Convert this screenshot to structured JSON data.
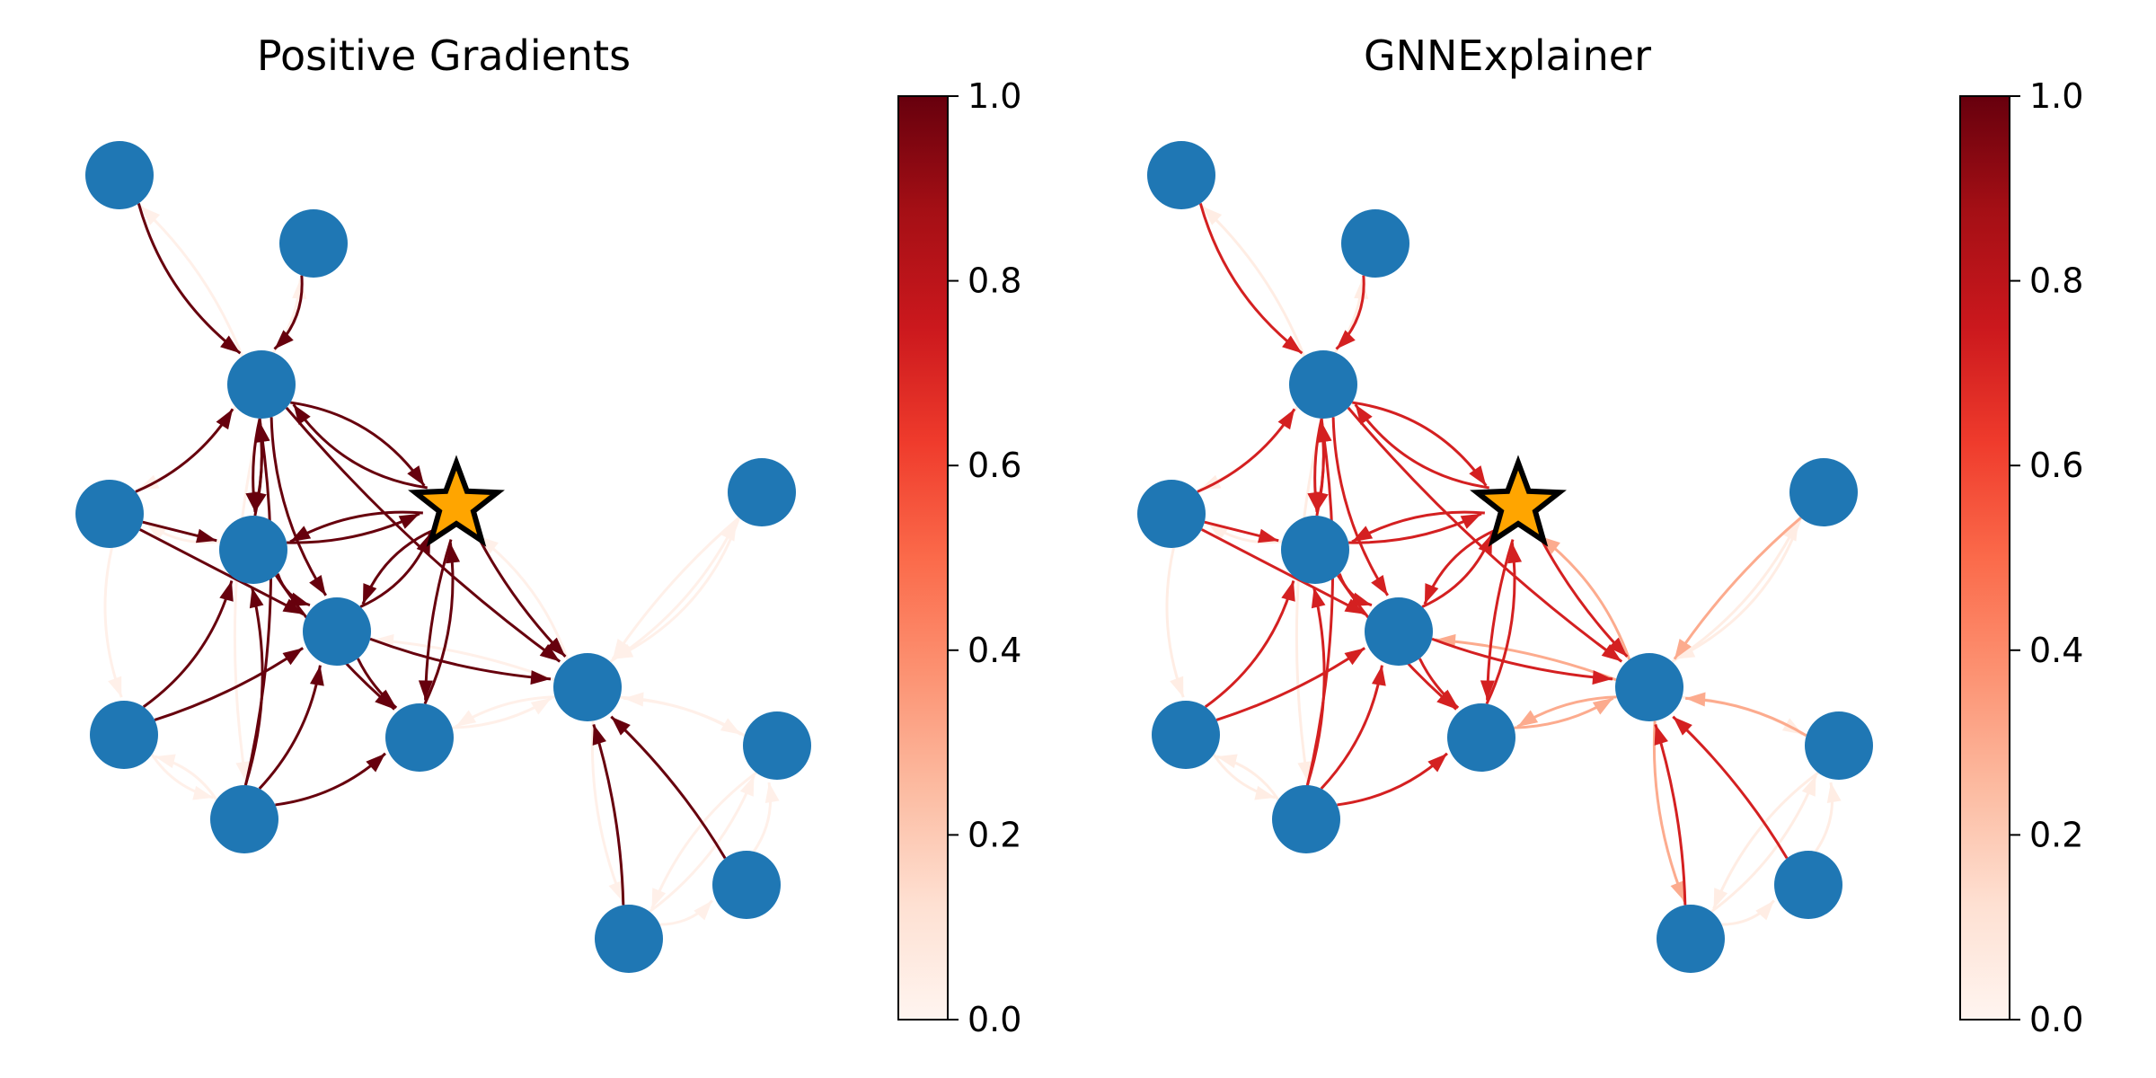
{
  "figure": {
    "panels": [
      {
        "title": "Positive Gradients",
        "colorbar": {
          "colormap": "Reds",
          "ticks": [
            "0.0",
            "0.2",
            "0.4",
            "0.6",
            "0.8",
            "1.0"
          ]
        },
        "edge_strengths": {
          "explained": 1.0,
          "secondary": 0.03,
          "background": 0.03
        }
      },
      {
        "title": "GNNExplainer",
        "colorbar": {
          "colormap": "Reds",
          "ticks": [
            "0.0",
            "0.2",
            "0.4",
            "0.6",
            "0.8",
            "1.0"
          ]
        },
        "edge_strengths": {
          "explained": 0.72,
          "secondary": 0.3,
          "background": 0.05
        }
      }
    ],
    "graph": {
      "node_count": 14,
      "target_node": "star",
      "node_color": "#1f77b4",
      "target_color": "#ffa500",
      "target_outline": "#000000"
    }
  }
}
